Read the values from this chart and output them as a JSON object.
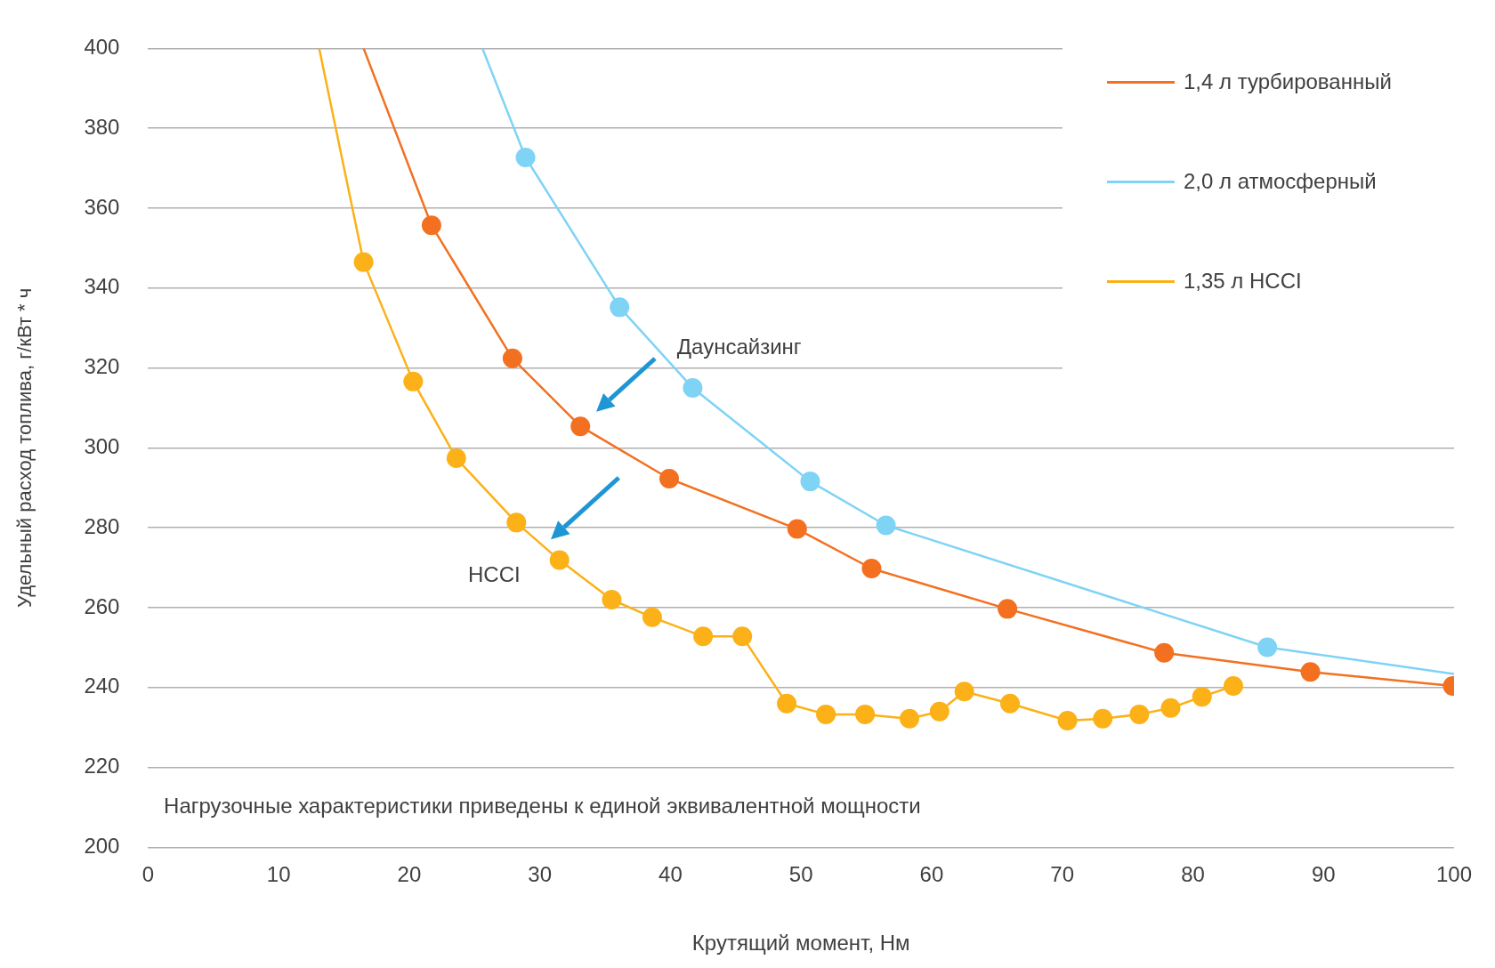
{
  "chart_data": {
    "type": "line",
    "xlabel": "Крутящий момент, Нм",
    "ylabel": "Удельный расход топлива, г/кВт * ч",
    "xlim": [
      0,
      100
    ],
    "xticks": [
      0,
      10,
      20,
      30,
      40,
      50,
      60,
      70,
      80,
      90,
      100
    ],
    "ylim": [
      200,
      400
    ],
    "yticks": [
      200,
      220,
      240,
      260,
      280,
      300,
      320,
      340,
      360,
      380,
      400
    ],
    "grid": "y",
    "legend": "top right",
    "marker": "circle",
    "line_style": "solid",
    "series": [
      {
        "name": "1,4 л турбированный",
        "color": "#f37021",
        "x": [
          16.5,
          21.7,
          27.9,
          33.1,
          39.9,
          49.7,
          55.4,
          65.8,
          77.8,
          89.0,
          99.9
        ],
        "values": [
          400,
          355.7,
          322.4,
          305.4,
          292.3,
          279.7,
          269.8,
          259.7,
          248.7,
          243.9,
          240.4
        ]
      },
      {
        "name": "2,0 л атмосферный",
        "color": "#7fd3f5",
        "x": [
          25.6,
          28.9,
          36.1,
          41.7,
          50.7,
          56.5,
          85.7,
          100
        ],
        "values": [
          400,
          372.7,
          335.2,
          315.0,
          291.6,
          280.6,
          250.1,
          243.4
        ]
      },
      {
        "name": "1,35 л  HCCI",
        "color": "#fbb117",
        "x": [
          13.1,
          16.5,
          20.3,
          23.6,
          28.2,
          31.5,
          35.5,
          38.6,
          42.5,
          45.5,
          48.9,
          51.9,
          54.9,
          58.3,
          60.6,
          62.5,
          66.0,
          70.4,
          73.1,
          75.9,
          78.3,
          80.7,
          83.1
        ],
        "values": [
          400,
          346.5,
          316.6,
          297.4,
          281.3,
          271.9,
          262.0,
          257.6,
          252.8,
          252.8,
          236.0,
          233.3,
          233.3,
          232.2,
          234.0,
          239.0,
          236.0,
          231.7,
          232.2,
          233.3,
          234.9,
          237.7,
          240.4
        ]
      }
    ],
    "annotations": [
      "Даунсайзинг",
      "HCCI",
      "Нагрузочные характеристики приведены к единой эквивалентной мощности"
    ]
  }
}
